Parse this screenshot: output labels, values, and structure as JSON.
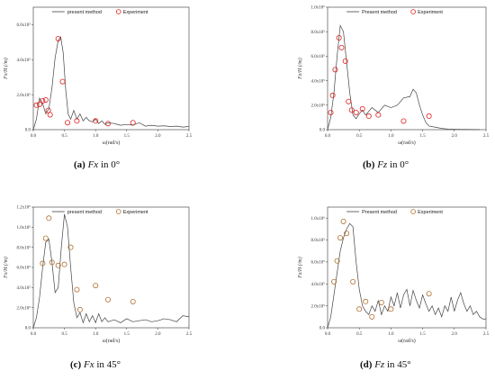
{
  "chart_data": [
    {
      "id": "a",
      "type": "line+scatter",
      "title": "",
      "caption": {
        "letter": "(a)",
        "var": "Fx",
        "rest": " in 0°"
      },
      "xlabel": "ω(rad/s)",
      "ylabel": "Fx/H (/m)",
      "xlim": [
        0,
        2.5
      ],
      "ylim": [
        0,
        700000
      ],
      "xticks": [
        "0.0",
        "0.5",
        "1.0",
        "1.5",
        "2.0",
        "2.5"
      ],
      "xtick_values": [
        0,
        0.5,
        1.0,
        1.5,
        2.0,
        2.5
      ],
      "yticks": [
        "0.0",
        "2.0x10⁵",
        "4.0x10⁵",
        "6.0x10⁵"
      ],
      "ytick_values": [
        0,
        200000,
        400000,
        600000
      ],
      "legend": {
        "line": "present method",
        "marker": "Experiment",
        "position": "top"
      },
      "marker_color": "#e02020",
      "series": [
        {
          "name": "present method",
          "kind": "line",
          "x": [
            0.0,
            0.05,
            0.1,
            0.15,
            0.2,
            0.25,
            0.3,
            0.35,
            0.4,
            0.44,
            0.48,
            0.52,
            0.56,
            0.6,
            0.65,
            0.7,
            0.75,
            0.8,
            0.85,
            0.9,
            0.95,
            1.0,
            1.05,
            1.1,
            1.15,
            1.2,
            1.3,
            1.4,
            1.5,
            1.6,
            1.7,
            1.8,
            1.9,
            2.0,
            2.1,
            2.2,
            2.3,
            2.4,
            2.5
          ],
          "y": [
            0,
            60000,
            180000,
            150000,
            90000,
            120000,
            240000,
            410000,
            510000,
            530000,
            440000,
            230000,
            90000,
            60000,
            110000,
            60000,
            90000,
            50000,
            70000,
            50000,
            45000,
            60000,
            35000,
            50000,
            30000,
            40000,
            35000,
            25000,
            30000,
            25000,
            40000,
            20000,
            25000,
            20000,
            22000,
            18000,
            20000,
            15000,
            18000
          ]
        },
        {
          "name": "Experiment",
          "kind": "scatter",
          "x": [
            0.05,
            0.1,
            0.15,
            0.2,
            0.24,
            0.27,
            0.4,
            0.47,
            0.55,
            0.7,
            1.0,
            1.2,
            1.6
          ],
          "y": [
            140000,
            145000,
            165000,
            170000,
            110000,
            85000,
            520000,
            275000,
            40000,
            50000,
            50000,
            35000,
            40000
          ]
        }
      ]
    },
    {
      "id": "b",
      "type": "line+scatter",
      "title": "",
      "caption": {
        "letter": "(b)",
        "var": "Fz",
        "rest": " in 0°"
      },
      "xlabel": "ω(rad/s)",
      "ylabel": "Fz/H (/m)",
      "xlim": [
        0,
        2.5
      ],
      "ylim": [
        0,
        1000000
      ],
      "xticks": [
        "0.0",
        "0.5",
        "1.0",
        "1.5",
        "2.0",
        "2.5"
      ],
      "xtick_values": [
        0,
        0.5,
        1.0,
        1.5,
        2.0,
        2.5
      ],
      "yticks": [
        "0.0",
        "2.0x10⁵",
        "4.0x10⁵",
        "6.0x10⁵",
        "8.0x10⁵",
        "1.0x10⁶"
      ],
      "ytick_values": [
        0,
        200000,
        400000,
        600000,
        800000,
        1000000
      ],
      "legend": {
        "line": "Present method",
        "marker": "Experiment",
        "position": "top"
      },
      "marker_color": "#e02020",
      "series": [
        {
          "name": "Present method",
          "kind": "line",
          "x": [
            0.0,
            0.05,
            0.1,
            0.15,
            0.2,
            0.25,
            0.3,
            0.35,
            0.4,
            0.45,
            0.5,
            0.55,
            0.6,
            0.7,
            0.8,
            0.9,
            1.0,
            1.1,
            1.2,
            1.3,
            1.35,
            1.4,
            1.45,
            1.5,
            1.55,
            1.6,
            1.7,
            1.8,
            1.9,
            2.0,
            2.1,
            2.2,
            2.3,
            2.4
          ],
          "y": [
            0,
            100000,
            300000,
            600000,
            850000,
            800000,
            550000,
            300000,
            120000,
            90000,
            130000,
            160000,
            120000,
            180000,
            140000,
            200000,
            180000,
            200000,
            260000,
            270000,
            330000,
            300000,
            200000,
            120000,
            60000,
            30000,
            20000,
            10000,
            5000,
            3000,
            2000,
            2000,
            1000,
            1000
          ]
        },
        {
          "name": "Experiment",
          "kind": "scatter",
          "x": [
            0.05,
            0.08,
            0.12,
            0.18,
            0.22,
            0.28,
            0.33,
            0.38,
            0.45,
            0.55,
            0.65,
            0.8,
            1.2,
            1.6
          ],
          "y": [
            140000,
            280000,
            490000,
            750000,
            670000,
            560000,
            230000,
            160000,
            140000,
            170000,
            110000,
            120000,
            70000,
            110000
          ]
        }
      ]
    },
    {
      "id": "c",
      "type": "line+scatter",
      "title": "",
      "caption": {
        "letter": "(c)",
        "var": "Fx",
        "rest": " in 45°"
      },
      "xlabel": "ω(rad/s)",
      "ylabel": "Fx/H (/m)",
      "xlim": [
        0,
        2.5
      ],
      "ylim": [
        0,
        1200000
      ],
      "xticks": [
        "0.0",
        "0.5",
        "1.0",
        "1.5",
        "2.0",
        "2.5"
      ],
      "xtick_values": [
        0,
        0.5,
        1.0,
        1.5,
        2.0,
        2.5
      ],
      "yticks": [
        "0.0",
        "2.0x10⁵",
        "4.0x10⁵",
        "6.0x10⁵",
        "8.0x10⁵",
        "1.0x10⁶",
        "1.2x10⁶"
      ],
      "ytick_values": [
        0,
        200000,
        400000,
        600000,
        800000,
        1000000,
        1200000
      ],
      "legend": {
        "line": "present method",
        "marker": "Experiment",
        "position": "top"
      },
      "marker_color": "#b07030",
      "series": [
        {
          "name": "present method",
          "kind": "line",
          "x": [
            0.0,
            0.05,
            0.1,
            0.15,
            0.2,
            0.25,
            0.3,
            0.35,
            0.4,
            0.45,
            0.5,
            0.55,
            0.6,
            0.65,
            0.7,
            0.75,
            0.8,
            0.85,
            0.9,
            0.95,
            1.0,
            1.05,
            1.1,
            1.15,
            1.2,
            1.3,
            1.4,
            1.5,
            1.6,
            1.7,
            1.8,
            1.9,
            2.0,
            2.1,
            2.2,
            2.3,
            2.4,
            2.5
          ],
          "y": [
            0,
            100000,
            300000,
            600000,
            850000,
            880000,
            650000,
            350000,
            400000,
            800000,
            1130000,
            1000000,
            600000,
            250000,
            100000,
            150000,
            50000,
            140000,
            60000,
            120000,
            50000,
            140000,
            60000,
            100000,
            60000,
            80000,
            50000,
            90000,
            60000,
            70000,
            80000,
            60000,
            70000,
            90000,
            80000,
            60000,
            120000,
            110000
          ]
        },
        {
          "name": "Experiment",
          "kind": "scatter",
          "x": [
            0.15,
            0.2,
            0.25,
            0.3,
            0.4,
            0.5,
            0.6,
            0.7,
            0.75,
            1.0,
            1.2,
            1.6
          ],
          "y": [
            640000,
            890000,
            1090000,
            650000,
            620000,
            630000,
            800000,
            380000,
            180000,
            420000,
            280000,
            260000
          ]
        }
      ]
    },
    {
      "id": "d",
      "type": "line+scatter",
      "title": "",
      "caption": {
        "letter": "(d)",
        "var": "Fz",
        "rest": " in 45°"
      },
      "xlabel": "ω(rad/s)",
      "ylabel": "Fz/H (/m)",
      "xlim": [
        0,
        2.5
      ],
      "ylim": [
        0,
        1100000
      ],
      "xticks": [
        "0.0",
        "0.5",
        "1.0",
        "1.5",
        "2.0",
        "2.5"
      ],
      "xtick_values": [
        0,
        0.5,
        1.0,
        1.5,
        2.0,
        2.5
      ],
      "yticks": [
        "0.0",
        "2.0x10⁵",
        "4.0x10⁵",
        "6.0x10⁵",
        "8.0x10⁵",
        "1.0x10⁶"
      ],
      "ytick_values": [
        0,
        200000,
        400000,
        600000,
        800000,
        1000000
      ],
      "legend": {
        "line": "Present method",
        "marker": "Experiment",
        "position": "top"
      },
      "marker_color": "#b07030",
      "series": [
        {
          "name": "Present method",
          "kind": "line",
          "x": [
            0.0,
            0.05,
            0.1,
            0.15,
            0.2,
            0.25,
            0.3,
            0.35,
            0.4,
            0.45,
            0.5,
            0.55,
            0.6,
            0.65,
            0.7,
            0.75,
            0.8,
            0.85,
            0.9,
            0.95,
            1.0,
            1.05,
            1.1,
            1.15,
            1.2,
            1.25,
            1.3,
            1.35,
            1.4,
            1.45,
            1.5,
            1.55,
            1.6,
            1.65,
            1.7,
            1.75,
            1.8,
            1.85,
            1.9,
            1.95,
            2.0,
            2.05,
            2.1,
            2.15,
            2.2,
            2.25,
            2.3,
            2.35,
            2.4,
            2.45,
            2.5
          ],
          "y": [
            0,
            100000,
            300000,
            500000,
            700000,
            820000,
            900000,
            950000,
            920000,
            600000,
            350000,
            200000,
            150000,
            120000,
            200000,
            150000,
            250000,
            120000,
            200000,
            150000,
            280000,
            200000,
            320000,
            180000,
            300000,
            350000,
            200000,
            340000,
            250000,
            180000,
            300000,
            220000,
            150000,
            200000,
            120000,
            180000,
            100000,
            200000,
            150000,
            280000,
            150000,
            250000,
            320000,
            220000,
            150000,
            200000,
            120000,
            150000,
            100000,
            80000,
            80000
          ]
        },
        {
          "name": "Experiment",
          "kind": "scatter",
          "x": [
            0.1,
            0.15,
            0.2,
            0.25,
            0.3,
            0.4,
            0.5,
            0.6,
            0.7,
            0.85,
            1.0,
            1.6
          ],
          "y": [
            420000,
            610000,
            820000,
            970000,
            860000,
            420000,
            170000,
            240000,
            100000,
            230000,
            170000,
            310000
          ]
        }
      ]
    }
  ]
}
